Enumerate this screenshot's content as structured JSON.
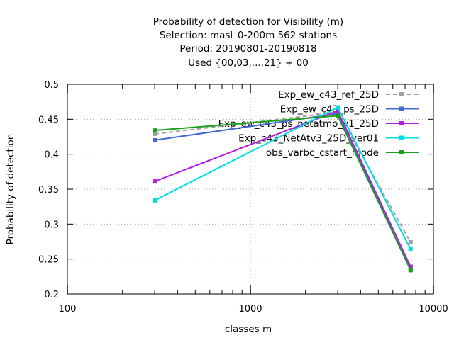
{
  "chart_data": {
    "type": "line",
    "title": [
      "Probability of detection  for Visibility (m)",
      "Selection: masl_0-200m    562 stations",
      "Period: 20190801-20190818",
      "Used {00,03,...,21} + 00"
    ],
    "xlabel": "classes m",
    "ylabel": "Probability of detection",
    "xscale": "log",
    "xlim": [
      100,
      10000
    ],
    "ylim": [
      0.2,
      0.5
    ],
    "xticks": [
      100,
      1000,
      10000
    ],
    "xtick_labels": [
      "100",
      "1000",
      "10000"
    ],
    "yticks": [
      0.2,
      0.25,
      0.3,
      0.35,
      0.4,
      0.45,
      0.5
    ],
    "ytick_labels": [
      "0.2",
      "0.25",
      "0.3",
      "0.35",
      "0.4",
      "0.45",
      "0.5"
    ],
    "grid": true,
    "legend_position": "top-right",
    "x": [
      300,
      3000,
      7500
    ],
    "series": [
      {
        "name": "Exp_ew_c43_ref_25D",
        "color": "#a0a0a0",
        "dashed": true,
        "values": [
          0.429,
          0.46,
          0.274
        ]
      },
      {
        "name": "Exp_ew_c43_ps_25D",
        "color": "#4169d1",
        "dashed": false,
        "values": [
          0.42,
          0.458,
          0.236
        ]
      },
      {
        "name": "Exp_ew_c43_ps_netatmo_v1_25D",
        "color": "#b01fe0",
        "dashed": false,
        "values": [
          0.361,
          0.462,
          0.239
        ]
      },
      {
        "name": "Exp_c43_NetAtv3_25D_ver01",
        "color": "#00dde0",
        "dashed": false,
        "values": [
          0.334,
          0.467,
          0.264
        ]
      },
      {
        "name": "obs_varbc_cstart_mode",
        "color": "#1aa01a",
        "dashed": false,
        "values": [
          0.434,
          0.455,
          0.234
        ]
      }
    ]
  }
}
